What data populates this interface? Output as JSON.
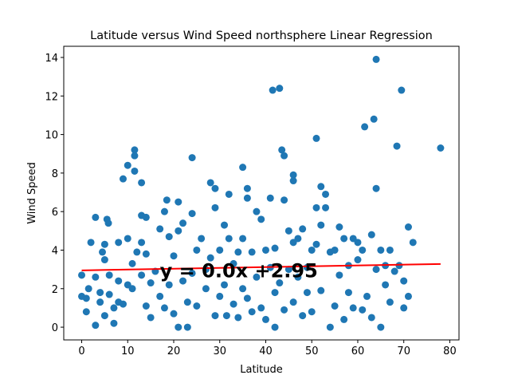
{
  "chart_data": {
    "type": "scatter",
    "title": "Latitude versus Wind Speed northsphere Linear Regression",
    "x_label": "Latitude",
    "y_label": "Wind Speed",
    "color": "#1f77b4",
    "x": [
      0,
      0,
      1,
      1,
      1.5,
      2,
      3,
      3,
      3,
      4,
      4,
      4.5,
      5,
      5,
      5,
      5.5,
      5.8,
      6,
      6,
      7,
      7,
      8,
      8,
      8,
      9,
      9,
      10,
      10,
      10,
      11,
      11,
      11.5,
      11.5,
      11.5,
      12,
      13,
      13,
      13,
      13,
      14,
      14,
      14,
      15,
      15,
      16,
      17,
      17,
      18,
      18,
      18.5,
      19,
      19,
      20,
      20,
      21,
      21,
      21,
      22,
      22,
      23,
      23,
      24,
      24,
      24,
      25,
      25,
      26,
      27,
      27,
      28,
      28,
      29,
      29,
      29,
      30,
      30,
      31,
      31,
      31.5,
      32,
      32,
      33,
      33,
      34,
      34,
      35,
      35,
      35,
      36,
      36,
      36,
      37,
      37,
      38,
      38,
      39,
      39,
      40,
      40,
      41,
      41,
      41.5,
      42,
      42,
      42,
      43,
      43,
      43.5,
      44,
      44,
      44,
      45,
      45,
      46,
      46,
      46,
      46,
      47,
      47,
      48,
      48,
      49,
      49,
      50,
      50,
      51,
      51,
      51,
      52,
      52,
      52,
      53,
      53,
      54,
      54,
      55,
      55,
      56,
      56,
      57,
      57,
      58,
      58,
      59,
      59,
      60,
      60,
      61,
      61,
      61.5,
      62,
      63,
      63,
      63.5,
      64,
      64,
      64,
      65,
      65,
      66,
      66,
      67,
      67,
      68,
      68.5,
      69,
      69.5,
      70,
      70,
      71,
      71,
      72,
      78
    ],
    "y": [
      2.7,
      1.6,
      0.8,
      1.5,
      2.0,
      4.4,
      0.1,
      2.6,
      5.7,
      1.8,
      1.3,
      3.9,
      3.5,
      0.6,
      4.3,
      5.6,
      5.4,
      2.7,
      1.7,
      0.2,
      1.0,
      2.4,
      1.3,
      4.4,
      7.7,
      1.2,
      8.4,
      4.6,
      2.2,
      2.0,
      3.3,
      9.2,
      8.9,
      8.1,
      3.9,
      7.5,
      5.8,
      4.4,
      2.7,
      5.7,
      3.8,
      1.1,
      2.3,
      0.5,
      2.9,
      1.6,
      5.1,
      6.0,
      1.0,
      6.6,
      4.7,
      2.2,
      3.7,
      0.7,
      6.5,
      5.0,
      0.0,
      5.4,
      2.4,
      0.0,
      1.3,
      8.8,
      5.9,
      2.8,
      1.1,
      4.0,
      4.6,
      2.0,
      3.0,
      7.5,
      3.6,
      7.2,
      6.2,
      0.6,
      4.0,
      1.6,
      5.3,
      2.2,
      0.6,
      6.9,
      4.6,
      3.3,
      1.2,
      3.9,
      0.5,
      8.3,
      4.6,
      2.0,
      6.7,
      7.2,
      1.5,
      3.9,
      0.8,
      6.0,
      2.6,
      5.6,
      1.0,
      4.0,
      0.4,
      6.7,
      3.1,
      12.3,
      4.1,
      1.8,
      0.0,
      12.4,
      2.3,
      9.2,
      8.9,
      6.6,
      0.9,
      5.0,
      3.0,
      7.9,
      7.6,
      4.4,
      1.3,
      4.6,
      2.6,
      5.1,
      0.6,
      3.1,
      1.8,
      4.0,
      0.8,
      9.8,
      6.2,
      4.3,
      7.3,
      5.3,
      1.9,
      6.9,
      6.2,
      3.9,
      0.0,
      4.0,
      1.1,
      5.2,
      2.7,
      4.6,
      0.4,
      3.2,
      1.8,
      4.6,
      1.0,
      4.4,
      3.5,
      0.9,
      4.0,
      10.4,
      1.6,
      4.8,
      0.5,
      10.8,
      13.9,
      7.2,
      3.0,
      0.0,
      4.0,
      2.2,
      3.2,
      1.3,
      4.0,
      2.9,
      9.4,
      3.2,
      12.3,
      1.0,
      2.4,
      5.2,
      1.6,
      4.4,
      9.3
    ],
    "regression_line": {
      "x": [
        0,
        78
      ],
      "y": [
        2.95,
        3.28
      ],
      "color": "#ff0000"
    },
    "annotation": {
      "text": "y = 0.0x +2.95",
      "x": 17,
      "y": 2.6,
      "color": "#ff0000"
    },
    "xlim": [
      -3.9,
      82.0
    ],
    "ylim": [
      -0.66,
      14.58
    ],
    "xticks": [
      0,
      10,
      20,
      30,
      40,
      50,
      60,
      70,
      80
    ],
    "yticks": [
      0,
      2,
      4,
      6,
      8,
      10,
      12,
      14
    ]
  }
}
